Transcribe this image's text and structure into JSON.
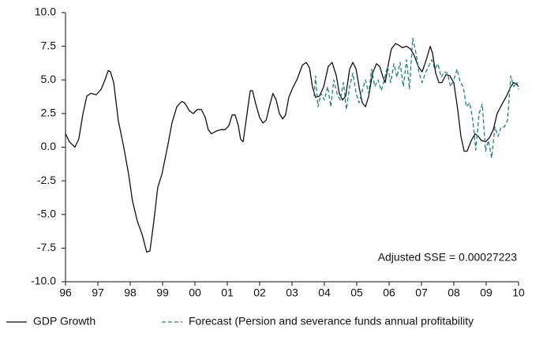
{
  "chart_data": {
    "type": "line",
    "annotation": "Adjusted SSE = 0.00027223",
    "xlim": [
      1996,
      2010
    ],
    "xticks": [
      {
        "value": 1996,
        "label": "96"
      },
      {
        "value": 1997,
        "label": "97"
      },
      {
        "value": 1998,
        "label": "98"
      },
      {
        "value": 1999,
        "label": "99"
      },
      {
        "value": 2000,
        "label": "00"
      },
      {
        "value": 2001,
        "label": "01"
      },
      {
        "value": 2002,
        "label": "02"
      },
      {
        "value": 2003,
        "label": "03"
      },
      {
        "value": 2004,
        "label": "04"
      },
      {
        "value": 2005,
        "label": "05"
      },
      {
        "value": 2006,
        "label": "06"
      },
      {
        "value": 2007,
        "label": "07"
      },
      {
        "value": 2008,
        "label": "08"
      },
      {
        "value": 2009,
        "label": "09"
      },
      {
        "value": 2010,
        "label": "10"
      }
    ],
    "ylim": [
      -10,
      10
    ],
    "yticks": [
      {
        "value": 10,
        "label": "10.0"
      },
      7.5,
      {
        "value": 5,
        "label": "5.0"
      },
      2.5,
      {
        "value": 0,
        "label": "0.0"
      },
      -2.5,
      {
        "value": -5,
        "label": "-5.0"
      },
      -7.5,
      {
        "value": -10,
        "label": "-10.0"
      }
    ],
    "grid": false,
    "legend": "bottom",
    "series": [
      {
        "name": "GDP Growth",
        "color": "#111111",
        "dash": "solid",
        "x": [
          1996.0,
          1996.12,
          1996.29,
          1996.41,
          1996.54,
          1996.66,
          1996.78,
          1996.95,
          1997.1,
          1997.22,
          1997.32,
          1997.39,
          1997.49,
          1997.63,
          1997.8,
          1997.95,
          1998.07,
          1998.22,
          1998.37,
          1998.51,
          1998.61,
          1998.73,
          1998.85,
          1998.98,
          1999.15,
          1999.29,
          1999.44,
          1999.59,
          1999.68,
          1999.83,
          1999.95,
          2000.07,
          2000.2,
          2000.32,
          2000.41,
          2000.51,
          2000.66,
          2000.8,
          2000.93,
          2001.05,
          2001.15,
          2001.24,
          2001.34,
          2001.41,
          2001.49,
          2001.61,
          2001.71,
          2001.78,
          2001.88,
          2002.0,
          2002.1,
          2002.2,
          2002.32,
          2002.41,
          2002.51,
          2002.61,
          2002.71,
          2002.8,
          2002.9,
          2003.02,
          2003.15,
          2003.32,
          2003.44,
          2003.54,
          2003.63,
          2003.73,
          2003.85,
          2003.98,
          2004.12,
          2004.24,
          2004.37,
          2004.46,
          2004.56,
          2004.66,
          2004.78,
          2004.88,
          2004.98,
          2005.07,
          2005.17,
          2005.27,
          2005.37,
          2005.49,
          2005.61,
          2005.71,
          2005.8,
          2005.88,
          2005.98,
          2006.07,
          2006.2,
          2006.29,
          2006.41,
          2006.54,
          2006.66,
          2006.78,
          2006.9,
          2007.02,
          2007.15,
          2007.27,
          2007.34,
          2007.44,
          2007.54,
          2007.63,
          2007.76,
          2007.88,
          2008.0,
          2008.12,
          2008.22,
          2008.32,
          2008.41,
          2008.54,
          2008.66,
          2008.76,
          2008.85,
          2008.98,
          2009.1,
          2009.22,
          2009.34,
          2009.49,
          2009.63,
          2009.76,
          2009.85,
          2009.93,
          2010.0
        ],
        "values": [
          1.0,
          0.4,
          0.0,
          0.6,
          2.5,
          3.8,
          4.0,
          3.9,
          4.3,
          5.0,
          5.7,
          5.6,
          4.8,
          2.0,
          0.0,
          -2.0,
          -4.0,
          -5.5,
          -6.5,
          -7.8,
          -7.7,
          -5.5,
          -3.0,
          -2.0,
          0.0,
          1.8,
          3.0,
          3.4,
          3.3,
          2.7,
          2.5,
          2.8,
          2.8,
          2.2,
          1.3,
          1.0,
          1.2,
          1.3,
          1.3,
          1.6,
          2.4,
          2.4,
          1.6,
          0.6,
          0.4,
          2.5,
          4.2,
          4.2,
          3.2,
          2.2,
          1.8,
          2.0,
          3.2,
          4.0,
          3.5,
          2.5,
          2.1,
          2.4,
          3.7,
          4.4,
          5.0,
          6.1,
          6.3,
          5.9,
          4.5,
          3.7,
          3.8,
          4.5,
          6.0,
          6.3,
          5.3,
          4.0,
          3.5,
          3.8,
          5.8,
          6.3,
          5.8,
          4.5,
          3.3,
          3.0,
          3.8,
          5.5,
          6.2,
          6.0,
          5.3,
          4.8,
          6.2,
          7.3,
          7.7,
          7.6,
          7.4,
          7.5,
          7.3,
          6.8,
          6.0,
          5.6,
          6.5,
          7.5,
          7.0,
          5.5,
          4.8,
          4.8,
          5.4,
          5.3,
          4.8,
          2.8,
          0.8,
          -0.3,
          -0.3,
          0.5,
          1.0,
          0.8,
          0.5,
          0.4,
          0.7,
          1.3,
          2.5,
          3.2,
          3.8,
          4.5,
          4.8,
          4.7,
          4.5
        ]
      },
      {
        "name": "Forecast (Persion and severance funds annual profitability",
        "color": "#1f7f80",
        "dash": "dashed",
        "x": [
          2003.68,
          2003.73,
          2003.8,
          2003.9,
          2004.0,
          2004.1,
          2004.2,
          2004.29,
          2004.39,
          2004.49,
          2004.59,
          2004.68,
          2004.78,
          2004.88,
          2004.98,
          2005.07,
          2005.17,
          2005.27,
          2005.37,
          2005.46,
          2005.56,
          2005.66,
          2005.76,
          2005.85,
          2005.95,
          2006.05,
          2006.15,
          2006.24,
          2006.34,
          2006.44,
          2006.54,
          2006.63,
          2006.73,
          2006.83,
          2006.93,
          2007.02,
          2007.12,
          2007.22,
          2007.32,
          2007.41,
          2007.51,
          2007.61,
          2007.71,
          2007.8,
          2007.9,
          2008.0,
          2008.1,
          2008.2,
          2008.29,
          2008.39,
          2008.49,
          2008.59,
          2008.68,
          2008.78,
          2008.88,
          2008.98,
          2009.07,
          2009.17,
          2009.27,
          2009.37,
          2009.46,
          2009.56,
          2009.66,
          2009.76,
          2009.85,
          2009.95,
          2010.0
        ],
        "values": [
          3.8,
          5.3,
          3.0,
          4.0,
          3.5,
          4.5,
          3.0,
          5.0,
          4.0,
          3.5,
          4.8,
          2.8,
          4.5,
          5.5,
          4.0,
          3.3,
          4.2,
          5.0,
          4.0,
          5.8,
          4.5,
          5.0,
          4.2,
          5.0,
          6.0,
          4.8,
          6.2,
          5.2,
          6.3,
          4.5,
          6.5,
          4.3,
          8.1,
          7.0,
          5.5,
          4.8,
          5.5,
          6.0,
          6.5,
          5.8,
          6.2,
          5.2,
          5.6,
          5.5,
          4.5,
          5.0,
          5.8,
          4.8,
          4.5,
          3.0,
          3.3,
          2.0,
          -0.2,
          2.5,
          3.2,
          -0.3,
          0.5,
          -0.8,
          1.5,
          0.8,
          1.5,
          1.5,
          2.0,
          5.3,
          4.5,
          4.8,
          4.3
        ]
      }
    ]
  }
}
